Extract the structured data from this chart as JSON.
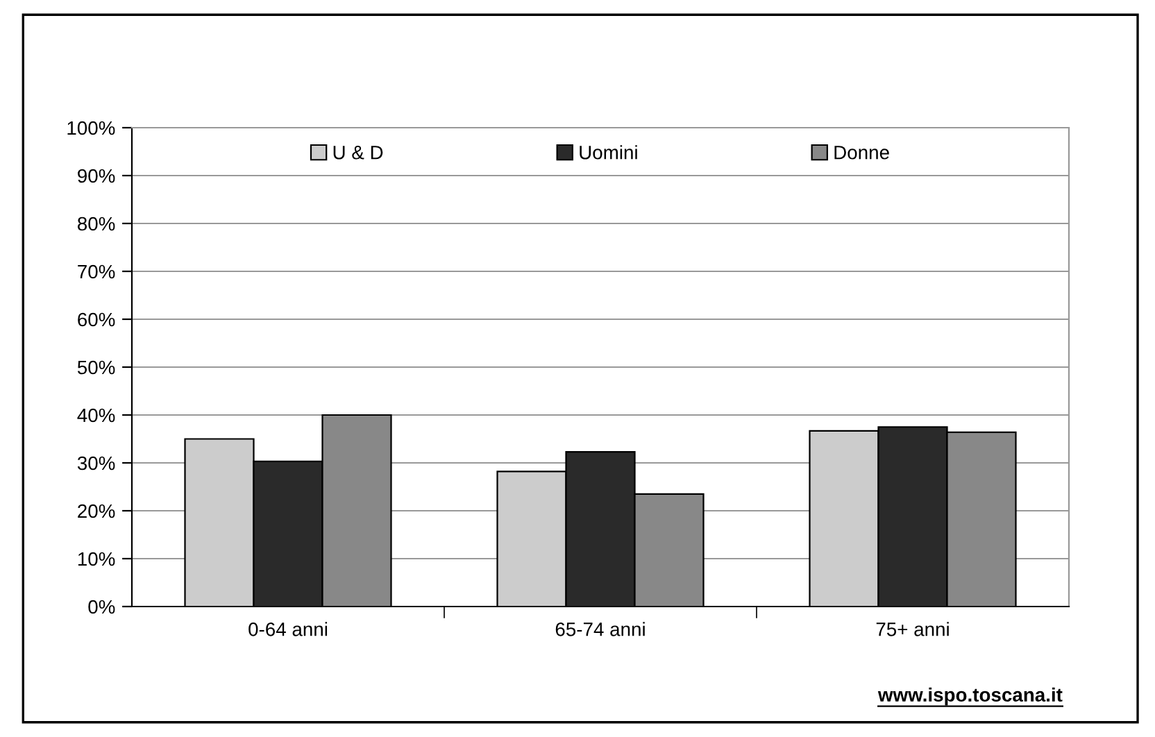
{
  "chart_data": {
    "type": "bar",
    "categories": [
      "0-64 anni",
      "65-74 anni",
      "75+ anni"
    ],
    "series": [
      {
        "name": "U & D",
        "color": "#cccccc",
        "values": [
          35.0,
          28.2,
          36.7
        ]
      },
      {
        "name": "Uomini",
        "color": "#2a2a2a",
        "values": [
          30.3,
          32.3,
          37.5
        ]
      },
      {
        "name": "Donne",
        "color": "#888888",
        "values": [
          40.0,
          23.5,
          36.4
        ]
      }
    ],
    "ylim": [
      0,
      100
    ],
    "yticks": [
      {
        "value": 0,
        "label": "0%"
      },
      {
        "value": 10,
        "label": "10%"
      },
      {
        "value": 20,
        "label": "20%"
      },
      {
        "value": 30,
        "label": "30%"
      },
      {
        "value": 40,
        "label": "40%"
      },
      {
        "value": 50,
        "label": "50%"
      },
      {
        "value": 60,
        "label": "60%"
      },
      {
        "value": 70,
        "label": "70%"
      },
      {
        "value": 80,
        "label": "80%"
      },
      {
        "value": 90,
        "label": "90%"
      },
      {
        "value": 100,
        "label": "100%"
      }
    ],
    "grid": "y",
    "legend": "top",
    "annotations": [
      "www.ispo.toscana.it"
    ]
  }
}
